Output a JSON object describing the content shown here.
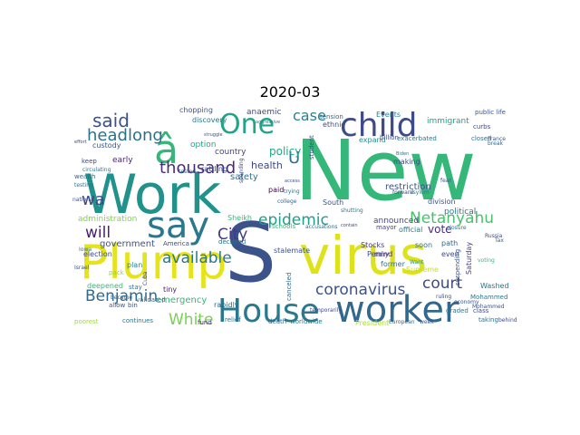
{
  "figure": {
    "title": "2020-03"
  },
  "wordcloud": {
    "background": "#ffffff",
    "colormap": "viridis",
    "words": [
      {
        "text": "New",
        "color": "#35b779"
      },
      {
        "text": "Work",
        "color": "#21918c"
      },
      {
        "text": "virus",
        "color": "#dde318"
      },
      {
        "text": "S",
        "color": "#3b528b"
      },
      {
        "text": "Plump",
        "color": "#e5e419"
      },
      {
        "text": "House",
        "color": "#2a788e"
      },
      {
        "text": "worker",
        "color": "#31688e"
      },
      {
        "text": "say",
        "color": "#2a788e"
      },
      {
        "text": "child",
        "color": "#3e4a89"
      },
      {
        "text": "â",
        "color": "#35b779"
      },
      {
        "text": "One",
        "color": "#20a486"
      },
      {
        "text": "said",
        "color": "#3b528b"
      },
      {
        "text": "headlong",
        "color": "#2c728e"
      },
      {
        "text": "wa",
        "color": "#3e4989"
      },
      {
        "text": "thousand",
        "color": "#472c7a"
      },
      {
        "text": "case",
        "color": "#26828e"
      },
      {
        "text": "U",
        "color": "#2c728e"
      },
      {
        "text": "policy",
        "color": "#22a785"
      },
      {
        "text": "epidemic",
        "color": "#1f9e89"
      },
      {
        "text": "Netanyahu",
        "color": "#4ac16d"
      },
      {
        "text": "will",
        "color": "#482173"
      },
      {
        "text": "available",
        "color": "#2a788e"
      },
      {
        "text": "City",
        "color": "#443983"
      },
      {
        "text": "coronavirus",
        "color": "#3b528b"
      },
      {
        "text": "court",
        "color": "#3e4a89"
      },
      {
        "text": "Benjamin",
        "color": "#31688e"
      },
      {
        "text": "White",
        "color": "#7ad151"
      },
      {
        "text": "government",
        "color": "#3b528b"
      },
      {
        "text": "announced",
        "color": "#3e4989"
      },
      {
        "text": "political",
        "color": "#2a788e"
      },
      {
        "text": "immigrant",
        "color": "#1fa088"
      },
      {
        "text": "restriction",
        "color": "#3b528b"
      },
      {
        "text": "vote",
        "color": "#472c7a"
      },
      {
        "text": "division",
        "color": "#3b528b"
      },
      {
        "text": "health",
        "color": "#3e4989"
      },
      {
        "text": "safety",
        "color": "#2c728e"
      },
      {
        "text": "administration",
        "color": "#7fd34e"
      },
      {
        "text": "emergency",
        "color": "#35b779"
      },
      {
        "text": "country",
        "color": "#414487"
      },
      {
        "text": "custody",
        "color": "#3b528b"
      },
      {
        "text": "early",
        "color": "#482878"
      },
      {
        "text": "option",
        "color": "#22a785"
      },
      {
        "text": "anaemic",
        "color": "#3e4989"
      },
      {
        "text": "paid",
        "color": "#440154"
      },
      {
        "text": "making",
        "color": "#3e4989"
      },
      {
        "text": "Sheikh",
        "color": "#35b779"
      },
      {
        "text": "mayor",
        "color": "#443983"
      },
      {
        "text": "official",
        "color": "#2a788e"
      },
      {
        "text": "Stocks",
        "color": "#443983"
      },
      {
        "text": "Penny",
        "color": "#3b528b"
      },
      {
        "text": "mind",
        "color": "#482173"
      },
      {
        "text": "President",
        "color": "#addc30"
      },
      {
        "text": "former",
        "color": "#2c728e"
      },
      {
        "text": "path",
        "color": "#31688e"
      },
      {
        "text": "even",
        "color": "#3e4989"
      },
      {
        "text": "soon",
        "color": "#2c728e"
      },
      {
        "text": "Want",
        "color": "#21918c"
      },
      {
        "text": "Supreme",
        "color": "#c2df23"
      },
      {
        "text": "Saturday",
        "color": "#433e85"
      },
      {
        "text": "Mohammed",
        "color": "#2a788e"
      },
      {
        "text": "class",
        "color": "#3e4989"
      },
      {
        "text": "Washed",
        "color": "#2c728e"
      },
      {
        "text": "tiny",
        "color": "#482475"
      },
      {
        "text": "declared",
        "color": "#2c728e"
      },
      {
        "text": "America",
        "color": "#3e4989"
      },
      {
        "text": "plan",
        "color": "#26828e"
      },
      {
        "text": "stay",
        "color": "#2a788e"
      },
      {
        "text": "allow",
        "color": "#3b528b"
      },
      {
        "text": "deepened",
        "color": "#35b779"
      },
      {
        "text": "pack",
        "color": "#8bd646"
      },
      {
        "text": "election",
        "color": "#3e4989"
      },
      {
        "text": "rapidly",
        "color": "#31688e"
      },
      {
        "text": "validated",
        "color": "#2c728e"
      },
      {
        "text": "fund",
        "color": "#482878"
      },
      {
        "text": "relief",
        "color": "#2c728e"
      },
      {
        "text": "death",
        "color": "#31688e"
      },
      {
        "text": "worldwide",
        "color": "#2a788e"
      },
      {
        "text": "temporarily",
        "color": "#3e4989"
      },
      {
        "text": "canceled",
        "color": "#31688e"
      },
      {
        "text": "stalemate",
        "color": "#3b528b"
      },
      {
        "text": "schools",
        "color": "#35b779"
      },
      {
        "text": "accusations",
        "color": "#2c728e"
      },
      {
        "text": "South",
        "color": "#3b528b"
      },
      {
        "text": "expand",
        "color": "#21918c"
      },
      {
        "text": "billion",
        "color": "#3e4989"
      },
      {
        "text": "exacerbated",
        "color": "#2a788e"
      },
      {
        "text": "ethnic",
        "color": "#3b528b"
      },
      {
        "text": "tension",
        "color": "#31688e"
      },
      {
        "text": "Events",
        "color": "#26828e"
      },
      {
        "text": "student",
        "color": "#3e4989"
      },
      {
        "text": "discovery",
        "color": "#2a788e"
      },
      {
        "text": "chopping",
        "color": "#3b528b"
      },
      {
        "text": "public life",
        "color": "#3b528b"
      },
      {
        "text": "curbs",
        "color": "#3e4989"
      },
      {
        "text": "closed",
        "color": "#2c728e"
      },
      {
        "text": "France",
        "color": "#3b528b"
      },
      {
        "text": "break",
        "color": "#31688e"
      },
      {
        "text": "forward",
        "color": "#3e4989"
      },
      {
        "text": "asylum",
        "color": "#2a788e"
      },
      {
        "text": "fear",
        "color": "#3b528b"
      },
      {
        "text": "closure",
        "color": "#2c728e"
      },
      {
        "text": "Russia",
        "color": "#3e4989"
      },
      {
        "text": "Tax",
        "color": "#31688e"
      },
      {
        "text": "suspending",
        "color": "#3b528b"
      },
      {
        "text": "voting",
        "color": "#35b779"
      },
      {
        "text": "graded",
        "color": "#2a788e"
      },
      {
        "text": "economy",
        "color": "#3b528b"
      },
      {
        "text": "ruling",
        "color": "#3e4989"
      },
      {
        "text": "European",
        "color": "#31688e"
      },
      {
        "text": "week",
        "color": "#3b528b"
      },
      {
        "text": "taking",
        "color": "#2c728e"
      },
      {
        "text": "behind",
        "color": "#3e4989"
      },
      {
        "text": "poorest",
        "color": "#a0da39"
      },
      {
        "text": "continues",
        "color": "#2a788e"
      },
      {
        "text": "bin",
        "color": "#3b528b"
      },
      {
        "text": "Cuba",
        "color": "#3e4989"
      },
      {
        "text": "became",
        "color": "#31688e"
      },
      {
        "text": "Israel",
        "color": "#3b528b"
      },
      {
        "text": "Iowa",
        "color": "#2c728e"
      },
      {
        "text": "keep",
        "color": "#3e4989"
      },
      {
        "text": "circulating",
        "color": "#2a788e"
      },
      {
        "text": "wealth",
        "color": "#31688e"
      },
      {
        "text": "national",
        "color": "#3b528b"
      },
      {
        "text": "testing",
        "color": "#2c728e"
      },
      {
        "text": "effort",
        "color": "#3e4989"
      },
      {
        "text": "rattling",
        "color": "#3b528b"
      },
      {
        "text": "tested",
        "color": "#31688e"
      },
      {
        "text": "aggressive",
        "color": "#2a788e"
      },
      {
        "text": "struggle",
        "color": "#3b528b"
      },
      {
        "text": "spending",
        "color": "#3e4989"
      },
      {
        "text": "trying",
        "color": "#2c728e"
      },
      {
        "text": "access",
        "color": "#3b528b"
      },
      {
        "text": "college",
        "color": "#31688e"
      },
      {
        "text": "shutting",
        "color": "#2a788e"
      },
      {
        "text": "contain",
        "color": "#3e4989"
      },
      {
        "text": "Mohammed",
        "color": "#3b528b"
      },
      {
        "text": "Biden",
        "color": "#2c728e"
      }
    ]
  }
}
